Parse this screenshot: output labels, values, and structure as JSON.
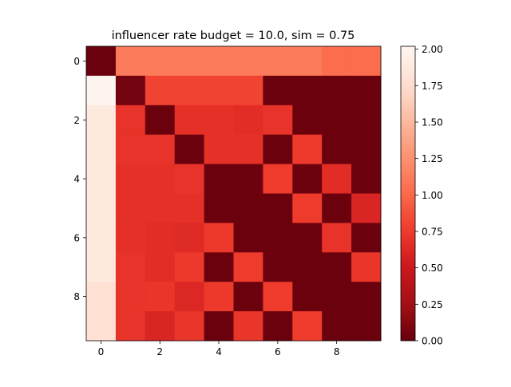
{
  "chart_data": {
    "type": "heatmap",
    "title": "influencer rate budget = 10.0, sim = 0.75",
    "xlabel": "",
    "ylabel": "",
    "colormap": "Reds_r",
    "vmin": 0.0,
    "vmax": 2.02,
    "x_ticks": [
      "0",
      "2",
      "4",
      "6",
      "8"
    ],
    "y_ticks": [
      "0",
      "2",
      "4",
      "6",
      "8"
    ],
    "colorbar_ticks": [
      "0.00",
      "0.25",
      "0.50",
      "0.75",
      "1.00",
      "1.25",
      "1.50",
      "1.75",
      "2.00"
    ],
    "rows": 10,
    "cols": 10,
    "values": [
      [
        0.02,
        1.12,
        1.12,
        1.12,
        1.12,
        1.12,
        1.12,
        1.12,
        1.03,
        1.03
      ],
      [
        2.02,
        0.05,
        0.8,
        0.8,
        0.8,
        0.8,
        0.02,
        0.02,
        0.02,
        0.02
      ],
      [
        1.88,
        0.7,
        0.02,
        0.68,
        0.68,
        0.66,
        0.7,
        0.02,
        0.02,
        0.02
      ],
      [
        1.88,
        0.7,
        0.7,
        0.02,
        0.68,
        0.68,
        0.02,
        0.75,
        0.02,
        0.02
      ],
      [
        1.88,
        0.68,
        0.68,
        0.7,
        0.02,
        0.02,
        0.76,
        0.02,
        0.66,
        0.02
      ],
      [
        1.88,
        0.68,
        0.68,
        0.68,
        0.02,
        0.02,
        0.02,
        0.76,
        0.02,
        0.6
      ],
      [
        1.88,
        0.68,
        0.66,
        0.64,
        0.74,
        0.02,
        0.02,
        0.02,
        0.7,
        0.02
      ],
      [
        1.88,
        0.7,
        0.66,
        0.74,
        0.02,
        0.76,
        0.02,
        0.02,
        0.02,
        0.72
      ],
      [
        1.78,
        0.7,
        0.72,
        0.62,
        0.74,
        0.02,
        0.76,
        0.02,
        0.02,
        0.02
      ],
      [
        1.78,
        0.7,
        0.6,
        0.72,
        0.02,
        0.72,
        0.02,
        0.76,
        0.02,
        0.02
      ]
    ]
  }
}
